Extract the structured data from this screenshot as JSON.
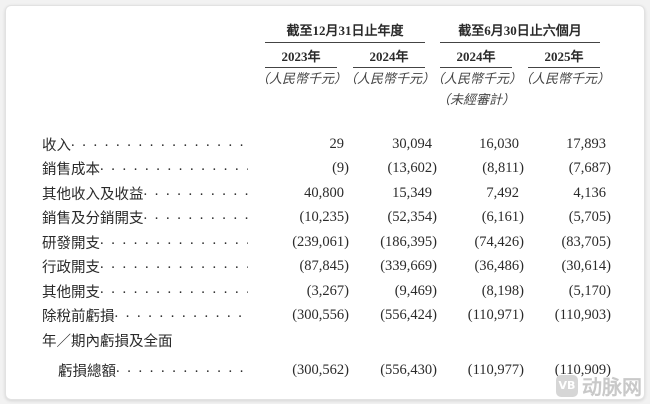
{
  "header": {
    "group_year": "截至12月31日止年度",
    "group_half": "截至6月30日止六個月",
    "columns": [
      {
        "year": "2023年",
        "unit": "（人民幣千元）"
      },
      {
        "year": "2024年",
        "unit": "（人民幣千元）"
      },
      {
        "year": "2024年",
        "unit": "（人民幣千元）",
        "note": "（未經審計）"
      },
      {
        "year": "2025年",
        "unit": "（人民幣千元）"
      }
    ]
  },
  "rows": [
    {
      "label": "收入",
      "values": [
        "29",
        "30,094",
        "16,030",
        "17,893"
      ]
    },
    {
      "label": "銷售成本",
      "values": [
        "(9)",
        "(13,602)",
        "(8,811)",
        "(7,687)"
      ]
    },
    {
      "label": "其他收入及收益",
      "values": [
        "40,800",
        "15,349",
        "7,492",
        "4,136"
      ]
    },
    {
      "label": "銷售及分銷開支",
      "values": [
        "(10,235)",
        "(52,354)",
        "(6,161)",
        "(5,705)"
      ]
    },
    {
      "label": "研發開支",
      "values": [
        "(239,061)",
        "(186,395)",
        "(74,426)",
        "(83,705)"
      ]
    },
    {
      "label": "行政開支",
      "values": [
        "(87,845)",
        "(339,669)",
        "(36,486)",
        "(30,614)"
      ]
    },
    {
      "label": "其他開支",
      "values": [
        "(3,267)",
        "(9,469)",
        "(8,198)",
        "(5,170)"
      ]
    },
    {
      "label": "除稅前虧損",
      "values": [
        "(300,556)",
        "(556,424)",
        "(110,971)",
        "(110,903)"
      ]
    },
    {
      "label": "年／期內虧損及全面"
    },
    {
      "label": "虧損總額",
      "values": [
        "(300,562)",
        "(556,430)",
        "(110,977)",
        "(110,909)"
      ]
    }
  ],
  "watermark": {
    "logo": "VB",
    "text": "动脉网"
  }
}
